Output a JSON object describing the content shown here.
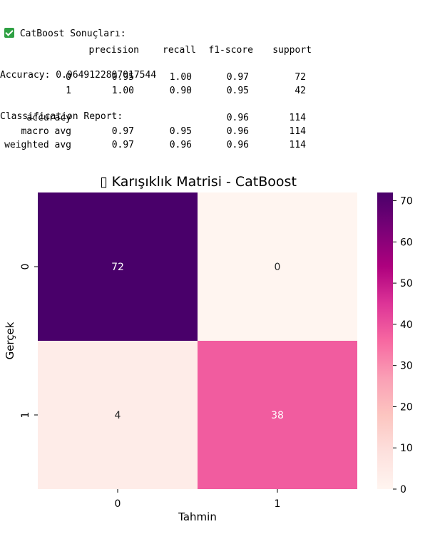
{
  "output": {
    "header_icon": "check-mark-icon",
    "header_text": "CatBoost Sonuçları:",
    "accuracy_line": "Accuracy: 0.9649122807017544",
    "report_title": "Classification Report:",
    "columns": [
      "precision",
      "recall",
      "f1-score",
      "support"
    ],
    "rows": [
      {
        "label": "0",
        "precision": "0.95",
        "recall": "1.00",
        "f1": "0.97",
        "support": "72"
      },
      {
        "label": "1",
        "precision": "1.00",
        "recall": "0.90",
        "f1": "0.95",
        "support": "42"
      },
      {
        "label": "accuracy",
        "precision": "",
        "recall": "",
        "f1": "0.96",
        "support": "114"
      },
      {
        "label": "macro avg",
        "precision": "0.97",
        "recall": "0.95",
        "f1": "0.96",
        "support": "114"
      },
      {
        "label": "weighted avg",
        "precision": "0.97",
        "recall": "0.96",
        "f1": "0.96",
        "support": "114"
      }
    ]
  },
  "chart_data": {
    "type": "heatmap",
    "title": "▯ Karışıklık Matrisi - CatBoost",
    "xlabel": "Tahmin",
    "ylabel": "Gerçek",
    "x_categories": [
      "0",
      "1"
    ],
    "y_categories": [
      "0",
      "1"
    ],
    "values": [
      [
        72,
        0
      ],
      [
        4,
        38
      ]
    ],
    "cell_labels": [
      [
        "72",
        "0"
      ],
      [
        "4",
        "38"
      ]
    ],
    "colorbar": {
      "min": 0,
      "max": 72,
      "ticks": [
        "0",
        "10",
        "20",
        "30",
        "40",
        "50",
        "60",
        "70"
      ]
    },
    "colormap": "RdPu",
    "colors": [
      "#fff5f0",
      "#fde0dd",
      "#fcc5c0",
      "#fa9fb5",
      "#f768a1",
      "#dd3497",
      "#ae017e",
      "#7a0177",
      "#49006a"
    ]
  }
}
